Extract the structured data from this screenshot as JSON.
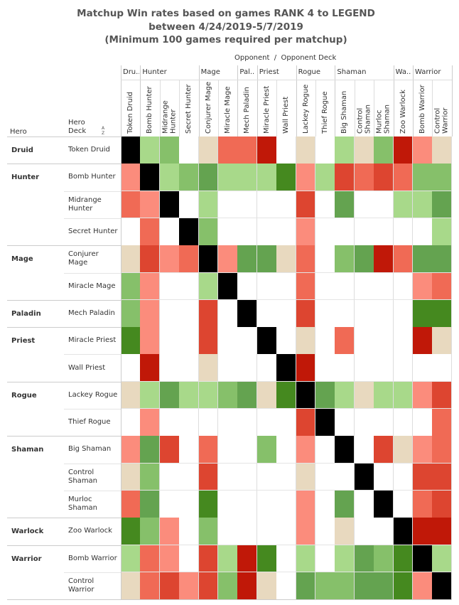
{
  "chart_data": {
    "type": "heatmap",
    "title": [
      "Matchup Win rates based on games RANK 4 to LEGEND",
      "between 4/24/2019-5/7/2019",
      "(Minimum 100 games required per matchup)"
    ],
    "column_title": "Opponent  /  Opponent Deck",
    "row_header": [
      "Hero",
      "Hero Deck"
    ],
    "column_groups": [
      {
        "label": "Dru..",
        "decks": [
          "Token Druid"
        ]
      },
      {
        "label": "Hunter",
        "decks": [
          "Bomb Hunter",
          "Midrange Hunter",
          "Secret Hunter"
        ]
      },
      {
        "label": "Mage",
        "decks": [
          "Conjurer Mage",
          "Miracle Mage"
        ]
      },
      {
        "label": "Pal..",
        "decks": [
          "Mech Paladin"
        ]
      },
      {
        "label": "Priest",
        "decks": [
          "Miracle Priest",
          "Wall Priest"
        ]
      },
      {
        "label": "Rogue",
        "decks": [
          "Lackey Rogue",
          "Thief Rogue"
        ]
      },
      {
        "label": "Shaman",
        "decks": [
          "Big Shaman",
          "Control Shaman",
          "Murloc Shaman"
        ]
      },
      {
        "label": "Wa..",
        "decks": [
          "Zoo Warlock"
        ]
      },
      {
        "label": "Warrior",
        "decks": [
          "Bomb Warrior",
          "Control Warrior"
        ]
      }
    ],
    "row_groups": [
      {
        "label": "Druid",
        "decks": [
          "Token Druid"
        ]
      },
      {
        "label": "Hunter",
        "decks": [
          "Bomb Hunter",
          "Midrange Hunter",
          "Secret Hunter"
        ]
      },
      {
        "label": "Mage",
        "decks": [
          "Conjurer Mage",
          "Miracle Mage"
        ]
      },
      {
        "label": "Paladin",
        "decks": [
          "Mech Paladin"
        ]
      },
      {
        "label": "Priest",
        "decks": [
          "Miracle Priest",
          "Wall Priest"
        ]
      },
      {
        "label": "Rogue",
        "decks": [
          "Lackey Rogue",
          "Thief Rogue"
        ]
      },
      {
        "label": "Shaman",
        "decks": [
          "Big Shaman",
          "Control Shaman",
          "Murloc Shaman"
        ]
      },
      {
        "label": "Warlock",
        "decks": [
          "Zoo Warlock"
        ]
      },
      {
        "label": "Warrior",
        "decks": [
          "Bomb Warrior",
          "Control Warrior"
        ]
      }
    ],
    "cell_colors": [
      [
        "#000000",
        "#a8d98a",
        "#86c06a",
        null,
        "#e8d9bf",
        "#f06a55",
        "#f06a55",
        "#c01808",
        null,
        "#e8d9bf",
        null,
        "#a8d98a",
        "#e8d9bf",
        "#86c06a",
        "#c01808",
        "#fb8c7c",
        "#e8d9bf"
      ],
      [
        "#fb8c7c",
        "#000000",
        "#a8d98a",
        "#86c06a",
        "#64a350",
        "#a8d98a",
        "#a8d98a",
        "#a8d98a",
        "#45891f",
        "#fb8c7c",
        "#a8d98a",
        "#dd4530",
        "#f06a55",
        "#dd4530",
        "#f06a55",
        "#86c06a",
        "#86c06a"
      ],
      [
        "#f06a55",
        "#fb8c7c",
        "#000000",
        null,
        "#a8d98a",
        null,
        null,
        null,
        null,
        "#dd4530",
        null,
        "#64a350",
        null,
        null,
        "#a8d98a",
        "#a8d98a",
        "#64a350"
      ],
      [
        null,
        "#f06a55",
        null,
        "#000000",
        "#86c06a",
        null,
        null,
        null,
        null,
        "#fb8c7c",
        null,
        null,
        null,
        null,
        null,
        null,
        "#a8d98a"
      ],
      [
        "#e8d9bf",
        "#dd4530",
        "#fb8c7c",
        "#f06a55",
        "#000000",
        "#fb8c7c",
        "#64a350",
        "#64a350",
        "#e8d9bf",
        "#f06a55",
        null,
        "#86c06a",
        "#64a350",
        "#c01808",
        "#f06a55",
        "#64a350",
        "#64a350"
      ],
      [
        "#86c06a",
        "#fb8c7c",
        null,
        null,
        "#a8d98a",
        "#000000",
        null,
        null,
        null,
        "#f06a55",
        null,
        null,
        null,
        null,
        null,
        "#fb8c7c",
        "#f06a55"
      ],
      [
        "#86c06a",
        "#fb8c7c",
        null,
        null,
        "#dd4530",
        null,
        "#000000",
        null,
        null,
        "#dd4530",
        null,
        null,
        null,
        null,
        null,
        "#45891f",
        "#45891f"
      ],
      [
        "#45891f",
        "#fb8c7c",
        null,
        null,
        "#dd4530",
        null,
        null,
        "#000000",
        null,
        "#e8d9bf",
        null,
        "#f06a55",
        null,
        null,
        null,
        "#c01808",
        "#e8d9bf"
      ],
      [
        null,
        "#c01808",
        null,
        null,
        "#e8d9bf",
        null,
        null,
        null,
        "#000000",
        "#c01808",
        null,
        null,
        null,
        null,
        null,
        null,
        null
      ],
      [
        "#e8d9bf",
        "#a8d98a",
        "#64a350",
        "#a8d98a",
        "#a8d98a",
        "#86c06a",
        "#64a350",
        "#e8d9bf",
        "#45891f",
        "#000000",
        "#64a350",
        "#a8d98a",
        "#e8d9bf",
        "#a8d98a",
        "#a8d98a",
        "#fb8c7c",
        "#dd4530"
      ],
      [
        null,
        "#fb8c7c",
        null,
        null,
        null,
        null,
        null,
        null,
        null,
        "#dd4530",
        "#000000",
        null,
        null,
        null,
        null,
        null,
        "#f06a55"
      ],
      [
        "#fb8c7c",
        "#64a350",
        "#dd4530",
        null,
        "#f06a55",
        null,
        null,
        "#86c06a",
        null,
        "#fb8c7c",
        null,
        "#000000",
        null,
        "#dd4530",
        "#e8d9bf",
        "#fb8c7c",
        "#f06a55"
      ],
      [
        "#e8d9bf",
        "#86c06a",
        null,
        null,
        "#dd4530",
        null,
        null,
        null,
        null,
        "#e8d9bf",
        null,
        null,
        "#000000",
        null,
        null,
        "#dd4530",
        "#dd4530"
      ],
      [
        "#f06a55",
        "#64a350",
        null,
        null,
        "#45891f",
        null,
        null,
        null,
        null,
        "#fb8c7c",
        null,
        "#64a350",
        null,
        "#000000",
        null,
        "#f06a55",
        "#dd4530"
      ],
      [
        "#45891f",
        "#86c06a",
        "#fb8c7c",
        null,
        "#86c06a",
        null,
        null,
        null,
        null,
        "#fb8c7c",
        null,
        "#e8d9bf",
        null,
        null,
        "#000000",
        "#c01808",
        "#c01808"
      ],
      [
        "#a8d98a",
        "#f06a55",
        "#fb8c7c",
        null,
        "#dd4530",
        "#a8d98a",
        "#c01808",
        "#45891f",
        null,
        "#a8d98a",
        null,
        "#a8d98a",
        "#64a350",
        "#86c06a",
        "#45891f",
        "#000000",
        "#a8d98a"
      ],
      [
        "#e8d9bf",
        "#f06a55",
        "#dd4530",
        "#fb8c7c",
        "#dd4530",
        "#86c06a",
        "#c01808",
        "#e8d9bf",
        null,
        "#64a350",
        "#86c06a",
        "#86c06a",
        "#64a350",
        "#64a350",
        "#45891f",
        "#fb8c7c",
        "#000000"
      ]
    ]
  }
}
